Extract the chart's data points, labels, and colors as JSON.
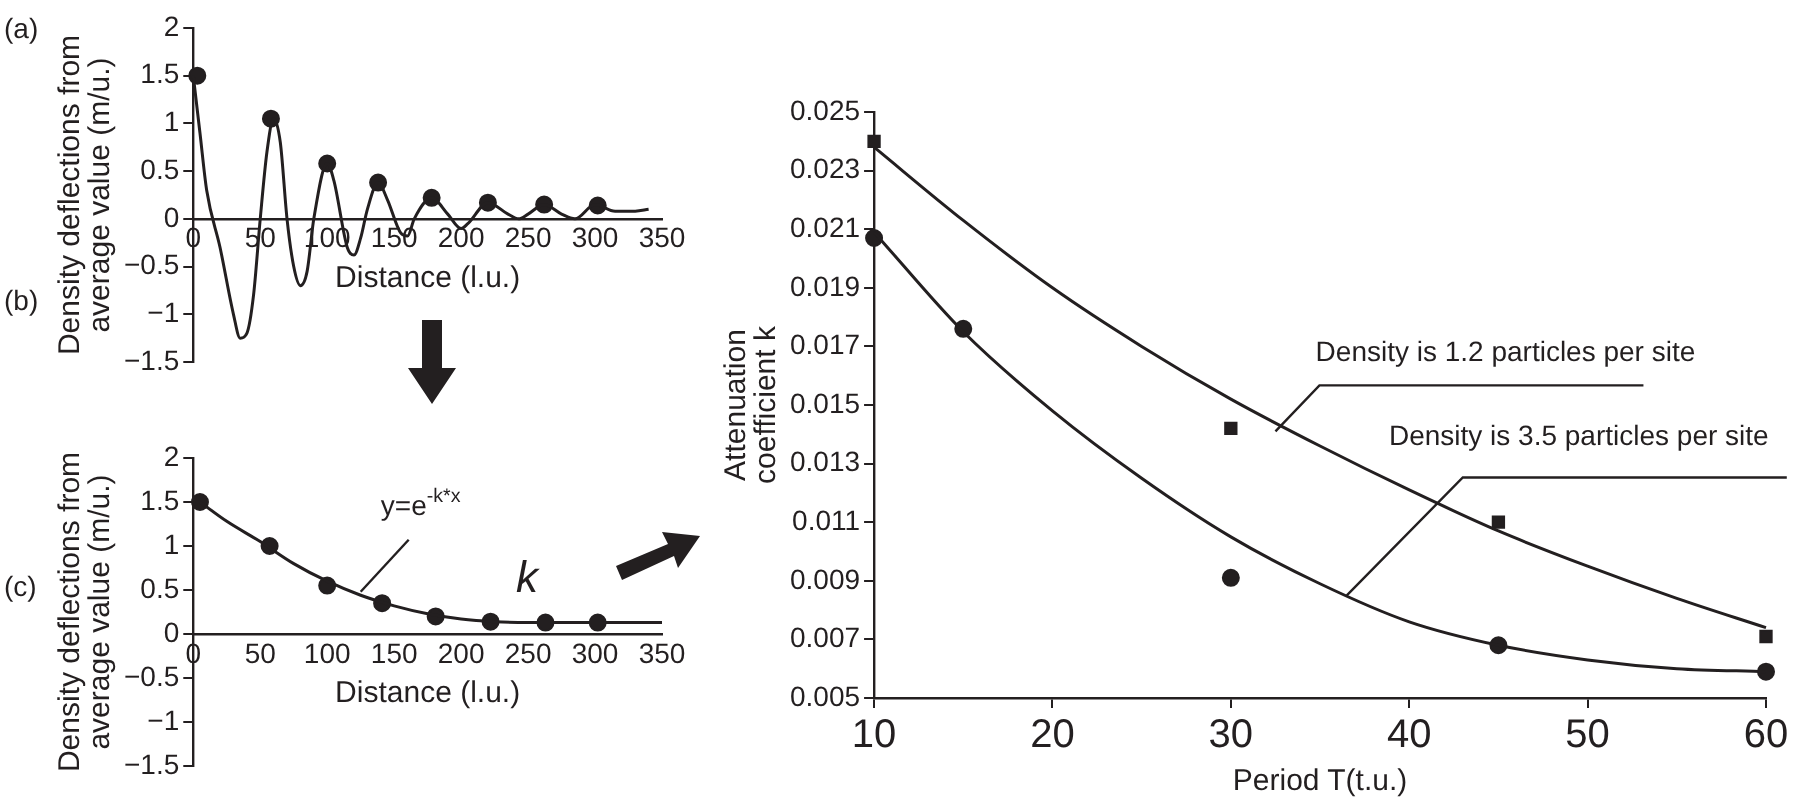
{
  "chart_data": [
    {
      "type": "line",
      "xlabel": "Distance (l.u.)",
      "ylabel": "Density deflections from average value (m/u.)",
      "xlim": [
        0,
        350
      ],
      "xticks": [
        0,
        50,
        100,
        150,
        200,
        250,
        300,
        350
      ],
      "ylim": [
        -1.5,
        2
      ],
      "yticks": [
        -1.5,
        -1,
        -0.5,
        0,
        0.5,
        1,
        1.5,
        2
      ],
      "grid": false,
      "legend": false,
      "annotations": [
        "(a)",
        "(b)"
      ],
      "series": [
        {
          "color": "#231f20",
          "x": [
            0,
            5,
            10,
            20,
            30,
            35,
            40,
            45,
            50,
            55,
            60,
            65,
            70,
            75,
            80,
            85,
            90,
            100,
            105,
            115,
            120,
            125,
            130,
            138,
            145,
            155,
            160,
            165,
            178,
            190,
            200,
            205,
            220,
            235,
            243,
            250,
            262,
            275,
            285,
            300,
            315,
            330,
            340
          ],
          "values": [
            1.5,
            0.9,
            0.3,
            -0.3,
            -1.0,
            -1.25,
            -1.2,
            -0.8,
            0,
            0.7,
            1.05,
            0.8,
            0,
            -0.5,
            -0.7,
            -0.55,
            0,
            0.58,
            0.4,
            -0.3,
            -0.38,
            -0.2,
            0.1,
            0.38,
            0.2,
            -0.15,
            -0.18,
            0,
            0.22,
            0.05,
            -0.1,
            -0.05,
            0.17,
            0.05,
            0,
            0.05,
            0.15,
            0.05,
            0,
            0.15,
            0.08,
            0.08,
            0.1
          ]
        },
        {
          "type": "scatter",
          "color": "#231f20",
          "marker": "circle",
          "x": [
            3,
            58,
            100,
            138,
            178,
            220,
            262,
            302
          ],
          "values": [
            1.5,
            1.05,
            0.58,
            0.38,
            0.22,
            0.17,
            0.15,
            0.14
          ]
        }
      ]
    },
    {
      "type": "line",
      "xlabel": "Distance (l.u.)",
      "ylabel": "Density deflections from average value (m/u.)",
      "xlim": [
        0,
        350
      ],
      "xticks": [
        0,
        50,
        100,
        150,
        200,
        250,
        300,
        350
      ],
      "ylim": [
        -1.5,
        2
      ],
      "yticks": [
        -1.5,
        -1,
        -0.5,
        0,
        0.5,
        1,
        1.5,
        2
      ],
      "grid": false,
      "legend": false,
      "annotations": [
        "(c)",
        "k",
        {
          "text": "y=e$^{-k*x}$",
          "x": 125,
          "y": 0.48
        }
      ],
      "series": [
        {
          "color": "#231f20",
          "x": [
            5,
            25,
            50,
            75,
            100,
            125,
            150,
            175,
            200,
            225,
            250,
            300,
            350
          ],
          "values": [
            1.5,
            1.28,
            1.05,
            0.8,
            0.6,
            0.44,
            0.32,
            0.23,
            0.17,
            0.14,
            0.13,
            0.13,
            0.13
          ]
        },
        {
          "type": "scatter",
          "color": "#231f20",
          "marker": "circle",
          "x": [
            5,
            57,
            100,
            141,
            181,
            222,
            263,
            302
          ],
          "values": [
            1.5,
            1.0,
            0.55,
            0.35,
            0.2,
            0.14,
            0.13,
            0.13
          ]
        }
      ]
    },
    {
      "type": "scatter",
      "xlabel": "Period T(t.u.)",
      "ylabel": "Attenuation coefficient k",
      "xlim": [
        10,
        60
      ],
      "xticks": [
        10,
        20,
        30,
        40,
        50,
        60
      ],
      "ylim": [
        0.005,
        0.025
      ],
      "yticks": [
        0.005,
        0.007,
        0.009,
        0.011,
        0.013,
        0.015,
        0.017,
        0.019,
        0.021,
        0.023,
        0.025
      ],
      "grid": false,
      "legend": false,
      "annotations": [
        {
          "text": "Density is 1.2 particles per site",
          "x": 32.5,
          "y": 0.0141
        },
        {
          "text": "Density is 3.5 particles per site",
          "x": 36.5,
          "y": 0.0085
        }
      ],
      "series": [
        {
          "type": "line",
          "color": "#231f20",
          "x": [
            10,
            15,
            20,
            25,
            30,
            35,
            40,
            45,
            50,
            55,
            60
          ],
          "values": [
            0.0238,
            0.0213,
            0.019,
            0.017,
            0.0152,
            0.0136,
            0.0121,
            0.0107,
            0.0095,
            0.0084,
            0.0074
          ]
        },
        {
          "type": "line",
          "color": "#231f20",
          "x": [
            10,
            15,
            20,
            25,
            30,
            35,
            40,
            45,
            50,
            55,
            60
          ],
          "values": [
            0.0209,
            0.0175,
            0.0148,
            0.0125,
            0.0105,
            0.0089,
            0.0076,
            0.0068,
            0.0063,
            0.006,
            0.0059
          ]
        },
        {
          "color": "#231f20",
          "marker": "square",
          "x": [
            10,
            30,
            45,
            60
          ],
          "values": [
            0.024,
            0.0142,
            0.011,
            0.0071
          ]
        },
        {
          "color": "#231f20",
          "marker": "circle",
          "x": [
            10,
            15,
            30,
            45,
            60
          ],
          "values": [
            0.0207,
            0.0176,
            0.0091,
            0.0068,
            0.0059
          ]
        }
      ]
    }
  ]
}
